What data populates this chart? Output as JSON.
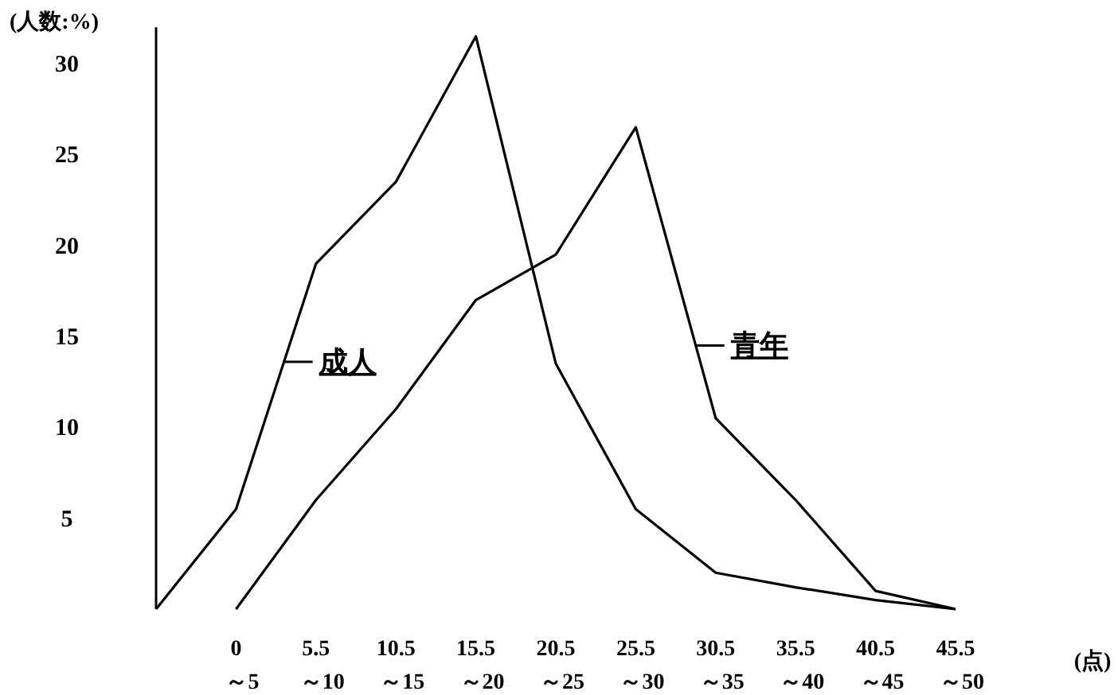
{
  "chart_data": {
    "type": "line",
    "xlabel": "(点)",
    "ylabel": "(人数:%)",
    "categories": [
      null,
      "0\n～5",
      "5.5\n～10",
      "10.5\n～15",
      "15.5\n～20",
      "20.5\n～25",
      "25.5\n～30",
      "30.5\n～35",
      "35.5\n～40",
      "40.5\n～45",
      "45.5\n～50"
    ],
    "series": [
      {
        "name": "成人",
        "color": "#000000",
        "values": [
          0,
          5.5,
          19,
          23.5,
          31.5,
          13.5,
          5.5,
          2,
          1.2,
          0.5,
          0
        ]
      },
      {
        "name": "青年",
        "color": "#000000",
        "values": [
          null,
          0,
          6,
          11,
          17,
          19.5,
          26.5,
          10.5,
          6,
          1,
          0
        ]
      }
    ],
    "ylim": [
      0,
      32
    ],
    "yticks": [
      5,
      10,
      15,
      20,
      25,
      30
    ],
    "legend": "center",
    "marker": "none",
    "line_style": "solid"
  }
}
